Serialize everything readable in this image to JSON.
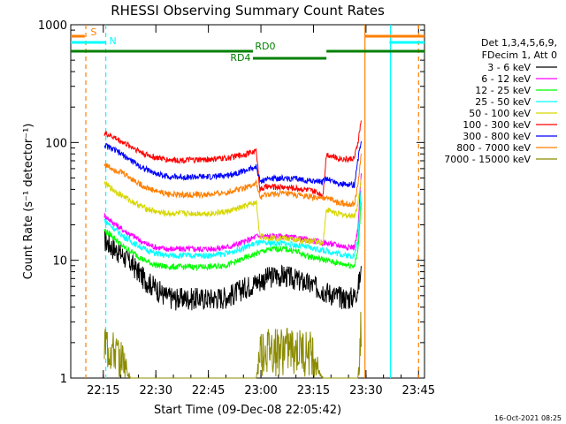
{
  "chart_data": {
    "type": "line",
    "title": "RHESSI Observing Summary Count Rates",
    "xlabel": "Start Time (09-Dec-08 22:05:42)",
    "ylabel": "Count Rate (s⁻¹ detector⁻¹)",
    "x_unit": "minutes after 22:05:42",
    "xlim": [
      0,
      101
    ],
    "ylim": [
      1,
      1000
    ],
    "yscale": "log",
    "x_ticks": [
      "22:15",
      "22:30",
      "22:45",
      "23:00",
      "23:15",
      "23:30",
      "23:45"
    ],
    "y_ticks": [
      "1",
      "10",
      "100",
      "1000"
    ],
    "legend_header": [
      "Det 1,3,4,5,6,9,",
      "FDecim 1, Att 0"
    ],
    "legend_position": "right",
    "data_gaps_x": [
      [
        0,
        9.6
      ],
      [
        83.2,
        101
      ]
    ],
    "series": [
      {
        "name": "3 - 6 keV",
        "color": "#000000",
        "points": [
          [
            9.6,
            15
          ],
          [
            12,
            13
          ],
          [
            15,
            11
          ],
          [
            18,
            9
          ],
          [
            21,
            7
          ],
          [
            24,
            6
          ],
          [
            27,
            5
          ],
          [
            30,
            4.8
          ],
          [
            35,
            4.8
          ],
          [
            40,
            4.8
          ],
          [
            45,
            5
          ],
          [
            50,
            6
          ],
          [
            55,
            7
          ],
          [
            58,
            7.5
          ],
          [
            61,
            7.5
          ],
          [
            64,
            7
          ],
          [
            67,
            6.5
          ],
          [
            70,
            6
          ],
          [
            73,
            5.5
          ],
          [
            76,
            5
          ],
          [
            79,
            4.8
          ],
          [
            81,
            5
          ],
          [
            82,
            6
          ],
          [
            83,
            8
          ]
        ]
      },
      {
        "name": "6 - 12 keV",
        "color": "#ff00ff",
        "points": [
          [
            9.6,
            24
          ],
          [
            12,
            21
          ],
          [
            15,
            18
          ],
          [
            18,
            16
          ],
          [
            21,
            14
          ],
          [
            24,
            13
          ],
          [
            27,
            12.5
          ],
          [
            30,
            12.5
          ],
          [
            35,
            12.5
          ],
          [
            40,
            12.5
          ],
          [
            45,
            13
          ],
          [
            50,
            14.5
          ],
          [
            53,
            16
          ],
          [
            56,
            16
          ],
          [
            60,
            16
          ],
          [
            64,
            15.5
          ],
          [
            67,
            15
          ],
          [
            70,
            14.5
          ],
          [
            73,
            14
          ],
          [
            76,
            13.5
          ],
          [
            79,
            13
          ],
          [
            81,
            13
          ],
          [
            82,
            18
          ],
          [
            83,
            60
          ]
        ]
      },
      {
        "name": "12 - 25 keV",
        "color": "#00ff00",
        "points": [
          [
            9.6,
            18
          ],
          [
            12,
            16
          ],
          [
            15,
            13
          ],
          [
            18,
            11.5
          ],
          [
            21,
            10
          ],
          [
            24,
            9.2
          ],
          [
            27,
            8.8
          ],
          [
            30,
            8.8
          ],
          [
            35,
            8.8
          ],
          [
            40,
            8.8
          ],
          [
            45,
            9.2
          ],
          [
            50,
            10.5
          ],
          [
            55,
            12
          ],
          [
            58,
            12.5
          ],
          [
            61,
            12.5
          ],
          [
            64,
            12
          ],
          [
            67,
            11
          ],
          [
            70,
            10.5
          ],
          [
            73,
            10
          ],
          [
            76,
            9.5
          ],
          [
            79,
            9.2
          ],
          [
            81,
            9
          ],
          [
            82,
            12
          ],
          [
            83,
            35
          ]
        ]
      },
      {
        "name": "25 - 50 keV",
        "color": "#00ffff",
        "points": [
          [
            9.6,
            22
          ],
          [
            12,
            19
          ],
          [
            15,
            16
          ],
          [
            18,
            14
          ],
          [
            21,
            12.5
          ],
          [
            24,
            11.5
          ],
          [
            27,
            11
          ],
          [
            30,
            11
          ],
          [
            35,
            11
          ],
          [
            40,
            11
          ],
          [
            45,
            11.5
          ],
          [
            50,
            13
          ],
          [
            53,
            14
          ],
          [
            56,
            14
          ],
          [
            60,
            14
          ],
          [
            64,
            13.5
          ],
          [
            67,
            13
          ],
          [
            70,
            12.5
          ],
          [
            73,
            12
          ],
          [
            76,
            11.5
          ],
          [
            79,
            11
          ],
          [
            81,
            11
          ],
          [
            82,
            15
          ],
          [
            83,
            45
          ]
        ]
      },
      {
        "name": "50 - 100 keV",
        "color": "#d7d700",
        "points": [
          [
            9.6,
            45
          ],
          [
            12,
            40
          ],
          [
            15,
            35
          ],
          [
            18,
            31
          ],
          [
            21,
            28
          ],
          [
            24,
            26
          ],
          [
            27,
            25
          ],
          [
            30,
            25
          ],
          [
            35,
            25
          ],
          [
            40,
            25
          ],
          [
            45,
            26
          ],
          [
            50,
            29
          ],
          [
            53,
            31
          ],
          [
            54,
            16
          ],
          [
            56,
            15.5
          ],
          [
            60,
            15.5
          ],
          [
            64,
            15
          ],
          [
            67,
            14.5
          ],
          [
            70,
            14.5
          ],
          [
            72,
            14
          ],
          [
            73,
            27
          ],
          [
            76,
            25
          ],
          [
            79,
            24
          ],
          [
            81,
            24
          ],
          [
            82,
            30
          ],
          [
            83,
            50
          ]
        ]
      },
      {
        "name": "100 - 300 keV",
        "color": "#ff0000",
        "points": [
          [
            9.6,
            120
          ],
          [
            12,
            112
          ],
          [
            15,
            100
          ],
          [
            18,
            90
          ],
          [
            21,
            80
          ],
          [
            24,
            75
          ],
          [
            27,
            72
          ],
          [
            30,
            71
          ],
          [
            35,
            71
          ],
          [
            40,
            72
          ],
          [
            45,
            74
          ],
          [
            50,
            80
          ],
          [
            53,
            85
          ],
          [
            54,
            40
          ],
          [
            56,
            42
          ],
          [
            60,
            42
          ],
          [
            64,
            41
          ],
          [
            67,
            40
          ],
          [
            70,
            38
          ],
          [
            72,
            36
          ],
          [
            73,
            80
          ],
          [
            76,
            74
          ],
          [
            79,
            72
          ],
          [
            81,
            74
          ],
          [
            82,
            100
          ],
          [
            83,
            160
          ]
        ]
      },
      {
        "name": "300 - 800 keV",
        "color": "#0000ff",
        "points": [
          [
            9.6,
            95
          ],
          [
            12,
            88
          ],
          [
            15,
            78
          ],
          [
            18,
            68
          ],
          [
            21,
            60
          ],
          [
            24,
            55
          ],
          [
            27,
            52
          ],
          [
            30,
            51
          ],
          [
            35,
            51
          ],
          [
            40,
            51
          ],
          [
            45,
            53
          ],
          [
            50,
            58
          ],
          [
            53,
            62
          ],
          [
            54,
            47
          ],
          [
            56,
            49
          ],
          [
            60,
            50
          ],
          [
            64,
            49
          ],
          [
            67,
            48
          ],
          [
            70,
            47
          ],
          [
            72,
            46
          ],
          [
            73,
            50
          ],
          [
            76,
            45
          ],
          [
            79,
            44
          ],
          [
            81,
            44
          ],
          [
            82,
            70
          ],
          [
            83,
            110
          ]
        ]
      },
      {
        "name": "800 - 7000 keV",
        "color": "#ff7f00",
        "points": [
          [
            9.6,
            65
          ],
          [
            12,
            60
          ],
          [
            15,
            55
          ],
          [
            18,
            48
          ],
          [
            21,
            42
          ],
          [
            24,
            39
          ],
          [
            27,
            37
          ],
          [
            30,
            36
          ],
          [
            35,
            36
          ],
          [
            40,
            36
          ],
          [
            45,
            38
          ],
          [
            50,
            42
          ],
          [
            53,
            45
          ],
          [
            54,
            34
          ],
          [
            56,
            36
          ],
          [
            60,
            37
          ],
          [
            64,
            36
          ],
          [
            67,
            35
          ],
          [
            70,
            34
          ],
          [
            72,
            33
          ],
          [
            73,
            35
          ],
          [
            76,
            31
          ],
          [
            79,
            30
          ],
          [
            81,
            30
          ],
          [
            82,
            45
          ],
          [
            83,
            80
          ]
        ]
      },
      {
        "name": "7000 - 15000 keV",
        "color": "#8b8b00",
        "points": [
          [
            9.6,
            3
          ],
          [
            15,
            2
          ],
          [
            17,
            1
          ],
          [
            53,
            1
          ],
          [
            54,
            2.6
          ],
          [
            57,
            2.7
          ],
          [
            61,
            2.7
          ],
          [
            65,
            2.6
          ],
          [
            69,
            2.5
          ],
          [
            71,
            1.3
          ],
          [
            72,
            1
          ],
          [
            82,
            1
          ],
          [
            82.5,
            2.5
          ],
          [
            83,
            8
          ]
        ]
      }
    ],
    "annotation_bars": [
      {
        "label": "RD0",
        "color": "#008000",
        "segments": [
          [
            0,
            52
          ],
          [
            73,
            101
          ]
        ],
        "level": "upper"
      },
      {
        "label": "RD4",
        "color": "#008000",
        "segments": [
          [
            52,
            73
          ]
        ],
        "level": "lower"
      },
      {
        "label": "S",
        "color": "#ff7f00",
        "segments": [
          [
            0,
            4
          ]
        ],
        "level": "top"
      },
      {
        "label": "",
        "color": "#ff7f00",
        "segments": [
          [
            84,
            101
          ]
        ],
        "level": "top"
      },
      {
        "label": "N",
        "color": "#00ffff",
        "segments": [
          [
            0,
            10
          ]
        ],
        "level": "second"
      },
      {
        "label": "",
        "color": "#00ffff",
        "segments": [
          [
            91,
            101
          ]
        ],
        "level": "second"
      }
    ],
    "vertical_lines": [
      {
        "x": 4.3,
        "color": "#ff7f00",
        "style": "dashed"
      },
      {
        "x": 10,
        "color": "#00ffff",
        "style": "dashed"
      },
      {
        "x": 84,
        "color": "#ff7f00",
        "style": "solid"
      },
      {
        "x": 91.3,
        "color": "#00ffff",
        "style": "solid"
      },
      {
        "x": 99.3,
        "color": "#ff7f00",
        "style": "dashed"
      }
    ]
  },
  "footer": {
    "timestamp": "16-Oct-2021 08:25"
  }
}
